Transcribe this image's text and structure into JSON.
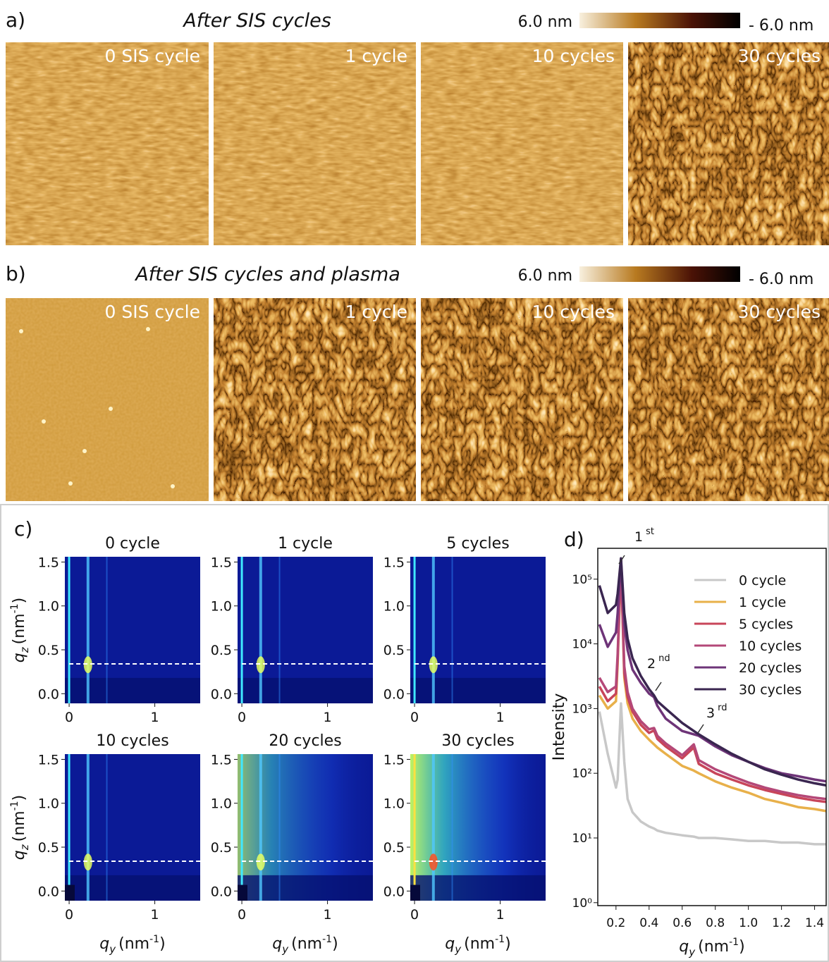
{
  "panel_a": {
    "label": "a)",
    "title": "After SIS cycles",
    "colorbar": {
      "max_label": "6.0 nm",
      "min_label": "- 6.0 nm"
    },
    "images": [
      "0 SIS cycle",
      "1 cycle",
      "10 cycles",
      "30 cycles"
    ]
  },
  "panel_b": {
    "label": "b)",
    "title": "After SIS cycles and plasma",
    "colorbar": {
      "max_label": "6.0 nm",
      "min_label": "- 6.0 nm"
    },
    "images": [
      "0 SIS cycle",
      "1 cycle",
      "10 cycles",
      "30 cycles"
    ]
  },
  "panel_c": {
    "label": "c)",
    "titles": [
      "0 cycle",
      "1 cycle",
      "5 cycles",
      "10 cycles",
      "20 cycles",
      "30 cycles"
    ],
    "xlim": [
      -0.05,
      1.53
    ],
    "ylim": [
      -0.11,
      1.56
    ],
    "xticks": [
      0,
      1
    ],
    "yticks": [
      {
        "value": 0,
        "label": "0.0"
      },
      {
        "value": 0.5,
        "label": "0.5"
      },
      {
        "value": 1,
        "label": "1.0"
      },
      {
        "value": 1.5,
        "label": "1.5"
      }
    ],
    "dashed_line_qz": 0.34,
    "x_label": {
      "symbol": "q",
      "sub": "y",
      "unit": "(nm",
      "unit_sup": "-1",
      "unit_end": ")"
    },
    "y_label": {
      "symbol": "q",
      "sub": "z",
      "unit": "(nm",
      "unit_sup": "-1",
      "unit_end": ")"
    }
  },
  "chart_data": {
    "type": "line",
    "label": "d)",
    "y_log": true,
    "x_label": {
      "symbol": "q",
      "sub": "y",
      "unit": "(nm",
      "unit_sup": "-1",
      "unit_end": ")"
    },
    "y_label": "Intensity",
    "x": [
      0.1,
      0.15,
      0.2,
      0.21,
      0.23,
      0.25,
      0.27,
      0.3,
      0.35,
      0.4,
      0.43,
      0.45,
      0.5,
      0.6,
      0.67,
      0.7,
      0.8,
      0.9,
      1.0,
      1.1,
      1.2,
      1.3,
      1.4,
      1.47
    ],
    "series": [
      {
        "name": "0 cycle",
        "color": "#c8c8c8",
        "values": [
          900,
          200,
          60,
          80,
          1200,
          150,
          40,
          25,
          18,
          15,
          14,
          13,
          12,
          11,
          10.5,
          10,
          10,
          9.5,
          9,
          9,
          8.5,
          8.5,
          8,
          8
        ]
      },
      {
        "name": "1 cycle",
        "color": "#e8b04a",
        "values": [
          1600,
          1000,
          1300,
          5000,
          180000,
          3000,
          1200,
          700,
          450,
          330,
          280,
          250,
          200,
          130,
          110,
          100,
          75,
          60,
          50,
          40,
          35,
          30,
          28,
          26
        ]
      },
      {
        "name": "5 cycles",
        "color": "#c8455a",
        "values": [
          2200,
          1300,
          1700,
          6000,
          190000,
          3500,
          1500,
          900,
          560,
          420,
          460,
          340,
          260,
          170,
          250,
          140,
          100,
          80,
          65,
          55,
          48,
          42,
          38,
          36
        ]
      },
      {
        "name": "10 cycles",
        "color": "#b44878",
        "values": [
          3000,
          1800,
          2200,
          7000,
          200000,
          4500,
          1800,
          1000,
          640,
          480,
          500,
          380,
          290,
          190,
          280,
          160,
          115,
          90,
          72,
          60,
          52,
          46,
          42,
          40
        ]
      },
      {
        "name": "20 cycles",
        "color": "#6e3478",
        "values": [
          20000,
          9000,
          15000,
          30000,
          200000,
          20000,
          8000,
          4000,
          2500,
          1700,
          1500,
          1100,
          700,
          450,
          400,
          380,
          260,
          190,
          150,
          120,
          100,
          90,
          80,
          75
        ]
      },
      {
        "name": "30 cycles",
        "color": "#3a2650",
        "values": [
          80000,
          30000,
          40000,
          60000,
          210000,
          30000,
          12000,
          6000,
          3200,
          2000,
          1600,
          1300,
          1000,
          600,
          450,
          400,
          280,
          200,
          150,
          115,
          95,
          80,
          70,
          65
        ]
      }
    ],
    "xlim": [
      0.09,
      1.47
    ],
    "ylim": [
      0.9,
      300000
    ],
    "xticks": [
      0.2,
      0.4,
      0.6,
      0.8,
      {
        "value": 1,
        "label": "1.0"
      },
      1.2,
      1.4
    ],
    "yticks": [
      {
        "value": 1,
        "label": "10⁰"
      },
      {
        "value": 10,
        "label": "10¹"
      },
      {
        "value": 100,
        "label": "10²"
      },
      {
        "value": 1000,
        "label": "10³"
      },
      {
        "value": 10000,
        "label": "10⁴"
      },
      {
        "value": 100000,
        "label": "10⁵"
      }
    ],
    "legend": "upper right",
    "annotations": [
      {
        "text": "1",
        "sup": "st"
      },
      {
        "text": "2",
        "sup": "nd"
      },
      {
        "text": "3",
        "sup": "rd"
      }
    ]
  }
}
